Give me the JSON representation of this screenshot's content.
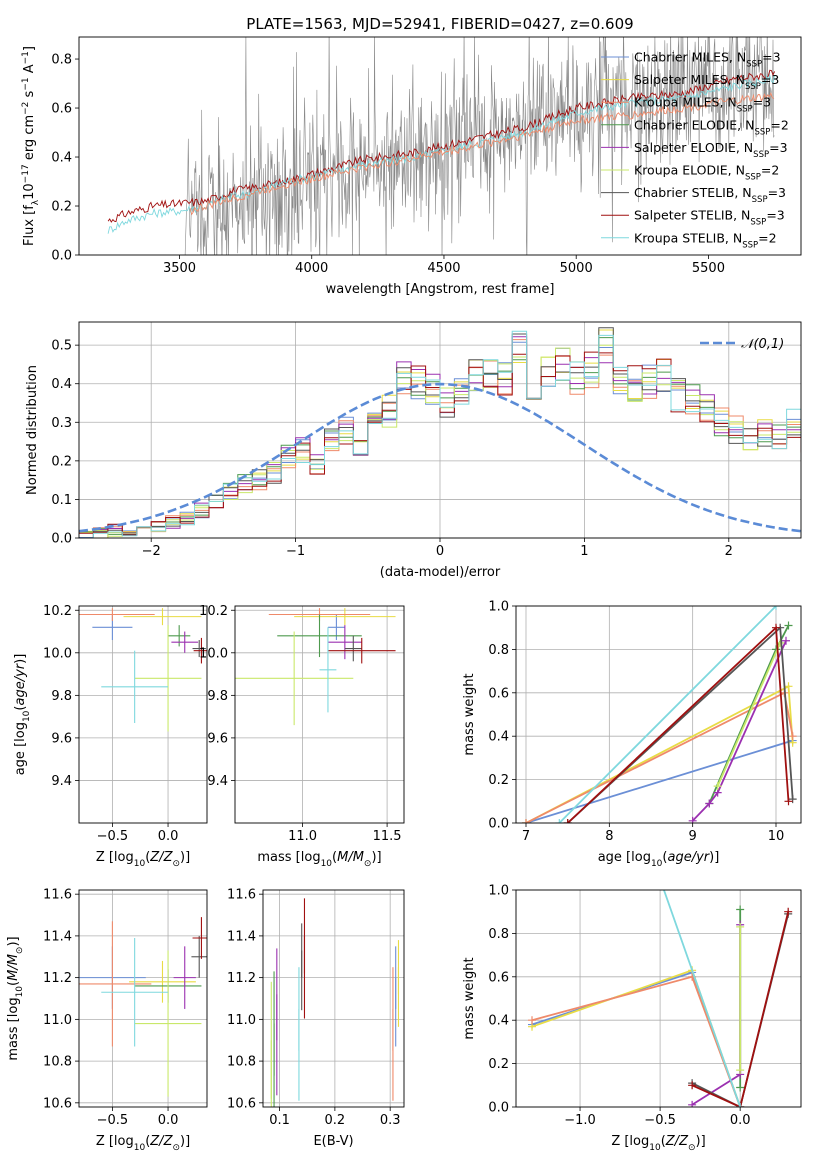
{
  "figure": {
    "title": "PLATE=1563, MJD=52941, FIBERID=0427, z=0.609"
  },
  "legend_entries": [
    {
      "label": "Chabrier MILES, N_SSP=3",
      "base": "Chabrier MILES, N",
      "sub": "SSP",
      "tail": "=3",
      "color": "#6b8fd6"
    },
    {
      "label": "Salpeter MILES, N_SSP=3",
      "base": "Salpeter MILES, N",
      "sub": "SSP",
      "tail": "=3",
      "color": "#e8dc45"
    },
    {
      "label": "Kroupa MILES, N_SSP=3",
      "base": "Kroupa MILES, N",
      "sub": "SSP",
      "tail": "=3",
      "color": "#ef8a6a"
    },
    {
      "label": "Chabrier ELODIE, N_SSP=2",
      "base": "Chabrier ELODIE, N",
      "sub": "SSP",
      "tail": "=2",
      "color": "#4e9a4e"
    },
    {
      "label": "Salpeter ELODIE, N_SSP=3",
      "base": "Salpeter ELODIE, N",
      "sub": "SSP",
      "tail": "=3",
      "color": "#9b30b0"
    },
    {
      "label": "Kroupa ELODIE, N_SSP=2",
      "base": "Kroupa ELODIE, N",
      "sub": "SSP",
      "tail": "=2",
      "color": "#c9e86a"
    },
    {
      "label": "Chabrier STELIB, N_SSP=3",
      "base": "Chabrier STELIB, N",
      "sub": "SSP",
      "tail": "=3",
      "color": "#555555"
    },
    {
      "label": "Salpeter STELIB, N_SSP=3",
      "base": "Salpeter STELIB, N",
      "sub": "SSP",
      "tail": "=3",
      "color": "#a01010"
    },
    {
      "label": "Kroupa STELIB, N_SSP=2",
      "base": "Kroupa STELIB, N",
      "sub": "SSP",
      "tail": "=2",
      "color": "#7fd8de"
    }
  ],
  "chart_data": [
    {
      "id": "spectrum",
      "type": "line",
      "xlabel": "wavelength [Angstrom, rest frame]",
      "ylabel": "Flux [f_λ 10^-17 erg cm^-2 s^-1 A^-1]",
      "xlim": [
        3120,
        5850
      ],
      "ylim": [
        0,
        0.89
      ],
      "xticks": [
        3500,
        4000,
        4500,
        5000,
        5500
      ],
      "yticks": [
        0.0,
        0.2,
        0.4,
        0.6,
        0.8
      ],
      "grid": false,
      "legend_position": "top-right",
      "observed": {
        "name": "data",
        "color": "#888888",
        "x_range": [
          3520,
          5750
        ],
        "approx_continuum": [
          [
            3520,
            0.2
          ],
          [
            3800,
            0.24
          ],
          [
            4000,
            0.32
          ],
          [
            4500,
            0.45
          ],
          [
            5000,
            0.6
          ],
          [
            5500,
            0.7
          ],
          [
            5750,
            0.74
          ]
        ],
        "noise_level": "high"
      },
      "models": [
        {
          "series": "Salpeter STELIB",
          "x": [
            3230,
            3300,
            3400,
            3500,
            3600,
            3700,
            3800,
            3900,
            4000,
            4200,
            4400,
            4600,
            4800,
            5000,
            5200,
            5400,
            5600,
            5750
          ],
          "y": [
            0.14,
            0.17,
            0.2,
            0.21,
            0.22,
            0.26,
            0.28,
            0.3,
            0.33,
            0.39,
            0.42,
            0.47,
            0.52,
            0.6,
            0.64,
            0.66,
            0.72,
            0.74
          ]
        },
        {
          "series": "Kroupa STELIB",
          "x": [
            3230,
            3300,
            3400,
            3500,
            3600,
            3700,
            3800,
            3900,
            4000,
            4200,
            4400,
            4600,
            4800,
            5000,
            5200,
            5400,
            5600,
            5750
          ],
          "y": [
            0.1,
            0.14,
            0.17,
            0.18,
            0.2,
            0.24,
            0.26,
            0.3,
            0.32,
            0.37,
            0.4,
            0.45,
            0.5,
            0.58,
            0.62,
            0.64,
            0.69,
            0.72
          ]
        },
        {
          "series": "Kroupa MILES",
          "x": [
            3540,
            3600,
            3700,
            3800,
            3900,
            4000,
            4200,
            4400,
            4600,
            4800,
            5000,
            5200,
            5400,
            5600,
            5750
          ],
          "y": [
            0.18,
            0.2,
            0.23,
            0.26,
            0.29,
            0.31,
            0.36,
            0.4,
            0.44,
            0.49,
            0.55,
            0.57,
            0.6,
            0.63,
            0.65
          ]
        }
      ]
    },
    {
      "id": "residuals",
      "type": "step-histogram",
      "xlabel": "(data-model)/error",
      "ylabel": "Normed distribution",
      "xlim": [
        -2.5,
        2.5
      ],
      "ylim": [
        0,
        0.56
      ],
      "xticks": [
        -2,
        -1,
        0,
        1,
        2
      ],
      "yticks": [
        0.0,
        0.1,
        0.2,
        0.3,
        0.4,
        0.5
      ],
      "grid": true,
      "legend_position": "top-right",
      "reference": {
        "name": "𝒩(0,1)",
        "mean": 0,
        "sigma": 1,
        "color": "#5b8bd6",
        "style": "dashed"
      },
      "bin_width": 0.1,
      "bin_start": -2.5,
      "approx_values": [
        0.01,
        0.01,
        0.02,
        0.02,
        0.03,
        0.03,
        0.04,
        0.05,
        0.07,
        0.1,
        0.12,
        0.14,
        0.15,
        0.17,
        0.21,
        0.23,
        0.19,
        0.26,
        0.28,
        0.24,
        0.3,
        0.33,
        0.41,
        0.4,
        0.38,
        0.35,
        0.37,
        0.42,
        0.44,
        0.42,
        0.5,
        0.4,
        0.43,
        0.45,
        0.41,
        0.44,
        0.49,
        0.42,
        0.4,
        0.41,
        0.42,
        0.37,
        0.36,
        0.33,
        0.3,
        0.28,
        0.25,
        0.27,
        0.26,
        0.3,
        0.25,
        0.2,
        0.24,
        0.22,
        0.2,
        0.18,
        0.15,
        0.14,
        0.13,
        0.11,
        0.1,
        0.09,
        0.08,
        0.07,
        0.06,
        0.06,
        0.05,
        0.05,
        0.04,
        0.04
      ]
    },
    {
      "id": "age-vs-Z",
      "type": "errorbar",
      "xlabel": "Z [log10(Z/Z☉)]",
      "ylabel": "age [log10(age/yr)]",
      "xlim": [
        -0.8,
        0.35
      ],
      "ylim": [
        9.2,
        10.22
      ],
      "xticks": [
        -0.5,
        0.0
      ],
      "yticks": [
        9.4,
        9.6,
        9.8,
        10.0,
        10.2
      ],
      "grid": true,
      "points": [
        {
          "series": "Chabrier MILES",
          "x": -0.5,
          "y": 10.12,
          "xerr": 0.18,
          "yerr": 0.06
        },
        {
          "series": "Salpeter MILES",
          "x": -0.05,
          "y": 10.17,
          "xerr": 0.35,
          "yerr": 0.04
        },
        {
          "series": "Kroupa MILES",
          "x": -0.5,
          "y": 10.18,
          "xerr": 0.38,
          "yerr": 0.03
        },
        {
          "series": "Chabrier ELODIE",
          "x": 0.1,
          "y": 10.08,
          "xerr": 0.1,
          "yerr": 0.05
        },
        {
          "series": "Salpeter ELODIE",
          "x": 0.15,
          "y": 10.05,
          "xerr": 0.12,
          "yerr": 0.05
        },
        {
          "series": "Kroupa ELODIE",
          "x": 0.0,
          "y": 9.88,
          "xerr": 0.3,
          "yerr": 0.25
        },
        {
          "series": "Chabrier STELIB",
          "x": 0.28,
          "y": 10.02,
          "xerr": 0.06,
          "yerr": 0.04
        },
        {
          "series": "Salpeter STELIB",
          "x": 0.3,
          "y": 10.01,
          "xerr": 0.07,
          "yerr": 0.06
        },
        {
          "series": "Kroupa STELIB",
          "x": -0.3,
          "y": 9.84,
          "xerr": 0.3,
          "yerr": 0.17
        }
      ]
    },
    {
      "id": "age-vs-mass",
      "type": "errorbar",
      "xlabel": "mass [log10(M/M☉)]",
      "ylabel": "",
      "xlim": [
        10.6,
        11.6
      ],
      "ylim": [
        9.2,
        10.22
      ],
      "xticks": [
        11.0,
        11.5
      ],
      "yticks": [
        9.4,
        9.6,
        9.8,
        10.0,
        10.2
      ],
      "grid": true,
      "points": [
        {
          "series": "Chabrier MILES",
          "x": 11.2,
          "y": 10.12,
          "xerr": 0.05,
          "yerr": 0.06
        },
        {
          "series": "Salpeter MILES",
          "x": 11.25,
          "y": 10.17,
          "xerr": 0.3,
          "yerr": 0.04
        },
        {
          "series": "Kroupa MILES",
          "x": 11.1,
          "y": 10.18,
          "xerr": 0.3,
          "yerr": 0.03
        },
        {
          "series": "Chabrier ELODIE",
          "x": 11.1,
          "y": 10.08,
          "xerr": 0.25,
          "yerr": 0.1
        },
        {
          "series": "Salpeter ELODIE",
          "x": 11.25,
          "y": 10.05,
          "xerr": 0.1,
          "yerr": 0.08
        },
        {
          "series": "Kroupa ELODIE",
          "x": 10.95,
          "y": 9.88,
          "xerr": 0.35,
          "yerr": 0.22
        },
        {
          "series": "Chabrier STELIB",
          "x": 11.3,
          "y": 10.02,
          "xerr": 0.05,
          "yerr": 0.06
        },
        {
          "series": "Salpeter STELIB",
          "x": 11.35,
          "y": 10.01,
          "xerr": 0.2,
          "yerr": 0.06
        },
        {
          "series": "Kroupa STELIB",
          "x": 11.15,
          "y": 9.92,
          "xerr": 0.05,
          "yerr": 0.2
        }
      ]
    },
    {
      "id": "massweight-vs-age",
      "type": "line",
      "xlabel": "age [log10(age/yr)]",
      "ylabel": "mass weight",
      "xlim": [
        6.88,
        10.3
      ],
      "ylim": [
        0,
        1.0
      ],
      "xticks": [
        7,
        8,
        9,
        10
      ],
      "yticks": [
        0.0,
        0.2,
        0.4,
        0.6,
        0.8,
        1.0
      ],
      "grid": true,
      "series": [
        {
          "name": "Chabrier MILES",
          "x": [
            7.0,
            10.2
          ],
          "y": [
            0.0,
            0.38
          ]
        },
        {
          "name": "Salpeter MILES",
          "x": [
            7.0,
            10.15,
            10.2
          ],
          "y": [
            0.0,
            0.63,
            0.37
          ]
        },
        {
          "name": "Kroupa MILES",
          "x": [
            7.0,
            10.1,
            10.2
          ],
          "y": [
            0.0,
            0.6,
            0.4
          ]
        },
        {
          "name": "Chabrier ELODIE",
          "x": [
            9.2,
            10.0,
            10.15
          ],
          "y": [
            0.09,
            0.8,
            0.91
          ]
        },
        {
          "name": "Salpeter ELODIE",
          "x": [
            9.0,
            9.2,
            9.3,
            10.12
          ],
          "y": [
            0.01,
            0.09,
            0.14,
            0.84
          ]
        },
        {
          "name": "Kroupa ELODIE",
          "x": [
            9.3,
            10.05
          ],
          "y": [
            0.17,
            0.83
          ]
        },
        {
          "name": "Chabrier STELIB",
          "x": [
            7.5,
            10.05,
            10.2
          ],
          "y": [
            0.0,
            0.9,
            0.11
          ]
        },
        {
          "name": "Salpeter STELIB",
          "x": [
            7.5,
            10.0,
            10.15
          ],
          "y": [
            0.0,
            0.9,
            0.1
          ]
        },
        {
          "name": "Kroupa STELIB",
          "x": [
            7.4,
            10.0
          ],
          "y": [
            0.0,
            1.0
          ]
        }
      ]
    },
    {
      "id": "mass-vs-Z",
      "type": "errorbar",
      "xlabel": "Z [log10(Z/Z☉)]",
      "ylabel": "mass [log10(M/M☉)]",
      "xlim": [
        -0.8,
        0.35
      ],
      "ylim": [
        10.58,
        11.62
      ],
      "xticks": [
        -0.5,
        0.0
      ],
      "yticks": [
        10.6,
        10.8,
        11.0,
        11.2,
        11.4,
        11.6
      ],
      "grid": true,
      "points": [
        {
          "series": "Chabrier MILES",
          "x": -0.5,
          "y": 11.2,
          "xerr": 0.3,
          "yerr": 0.15
        },
        {
          "series": "Salpeter MILES",
          "x": -0.05,
          "y": 11.18,
          "xerr": 0.3,
          "yerr": 0.1
        },
        {
          "series": "Kroupa MILES",
          "x": -0.5,
          "y": 11.17,
          "xerr": 0.35,
          "yerr": 0.3
        },
        {
          "series": "Chabrier ELODIE",
          "x": 0.0,
          "y": 11.16,
          "xerr": 0.3,
          "yerr": 0.08
        },
        {
          "series": "Salpeter ELODIE",
          "x": 0.15,
          "y": 11.2,
          "xerr": 0.1,
          "yerr": 0.15
        },
        {
          "series": "Kroupa ELODIE",
          "x": 0.0,
          "y": 10.98,
          "xerr": 0.3,
          "yerr": 0.35
        },
        {
          "series": "Chabrier STELIB",
          "x": 0.28,
          "y": 11.3,
          "xerr": 0.07,
          "yerr": 0.1
        },
        {
          "series": "Salpeter STELIB",
          "x": 0.3,
          "y": 11.39,
          "xerr": 0.08,
          "yerr": 0.1
        },
        {
          "series": "Kroupa STELIB",
          "x": -0.3,
          "y": 11.13,
          "xerr": 0.3,
          "yerr": 0.26
        }
      ]
    },
    {
      "id": "mass-vs-EBV",
      "type": "errorbar",
      "xlabel": "E(B-V)",
      "ylabel": "",
      "xlim": [
        0.07,
        0.325
      ],
      "ylim": [
        10.58,
        11.62
      ],
      "xticks": [
        0.1,
        0.2,
        0.3
      ],
      "yticks": [
        10.6,
        10.8,
        11.0,
        11.2,
        11.4,
        11.6
      ],
      "grid": true,
      "points": [
        {
          "series": "Kroupa ELODIE",
          "x": 0.085,
          "y": 10.9,
          "yerr": 0.28
        },
        {
          "series": "Chabrier ELODIE",
          "x": 0.09,
          "y": 10.98,
          "yerr": 0.25
        },
        {
          "series": "Salpeter ELODIE",
          "x": 0.095,
          "y": 11.12,
          "yerr": 0.22
        },
        {
          "series": "Kroupa STELIB",
          "x": 0.135,
          "y": 11.05,
          "yerr": 0.2
        },
        {
          "series": "Chabrier STELIB",
          "x": 0.14,
          "y": 11.33,
          "yerr": 0.13
        },
        {
          "series": "Salpeter STELIB",
          "x": 0.145,
          "y": 11.4,
          "yerr": 0.18
        },
        {
          "series": "Kroupa MILES",
          "x": 0.305,
          "y": 11.05,
          "yerr": 0.2
        },
        {
          "series": "Chabrier MILES",
          "x": 0.31,
          "y": 11.2,
          "yerr": 0.15
        },
        {
          "series": "Salpeter MILES",
          "x": 0.315,
          "y": 11.25,
          "yerr": 0.13
        }
      ]
    },
    {
      "id": "massweight-vs-Z",
      "type": "line",
      "xlabel": "Z [log10(Z/Z☉)]",
      "ylabel": "mass weight",
      "xlim": [
        -1.4,
        0.38
      ],
      "ylim": [
        0,
        1.0
      ],
      "xticks": [
        -1.0,
        -0.5,
        0.0
      ],
      "yticks": [
        0.0,
        0.2,
        0.4,
        0.6,
        0.8,
        1.0
      ],
      "grid": true,
      "series": [
        {
          "name": "Chabrier MILES",
          "x": [
            -1.3,
            -0.3,
            0.0
          ],
          "y": [
            0.38,
            0.62,
            0.0
          ]
        },
        {
          "name": "Salpeter MILES",
          "x": [
            -1.3,
            -0.3,
            0.0
          ],
          "y": [
            0.37,
            0.63,
            0.0
          ]
        },
        {
          "name": "Kroupa MILES",
          "x": [
            -1.3,
            -0.3,
            0.0
          ],
          "y": [
            0.4,
            0.6,
            0.0
          ]
        },
        {
          "name": "Chabrier ELODIE",
          "x": [
            0.0,
            0.0
          ],
          "y": [
            0.91,
            0.09
          ]
        },
        {
          "name": "Salpeter ELODIE",
          "x": [
            -0.3,
            0.0,
            0.0
          ],
          "y": [
            0.01,
            0.15,
            0.84
          ]
        },
        {
          "name": "Kroupa ELODIE",
          "x": [
            0.0,
            0.0
          ],
          "y": [
            0.83,
            0.17
          ]
        },
        {
          "name": "Chabrier STELIB",
          "x": [
            -0.3,
            0.0,
            0.3
          ],
          "y": [
            0.11,
            0.0,
            0.89
          ]
        },
        {
          "name": "Salpeter STELIB",
          "x": [
            -0.3,
            0.0,
            0.3
          ],
          "y": [
            0.1,
            0.0,
            0.9
          ]
        },
        {
          "name": "Kroupa STELIB",
          "x": [
            -0.5,
            0.0
          ],
          "y": [
            1.05,
            0.0
          ]
        }
      ]
    }
  ]
}
